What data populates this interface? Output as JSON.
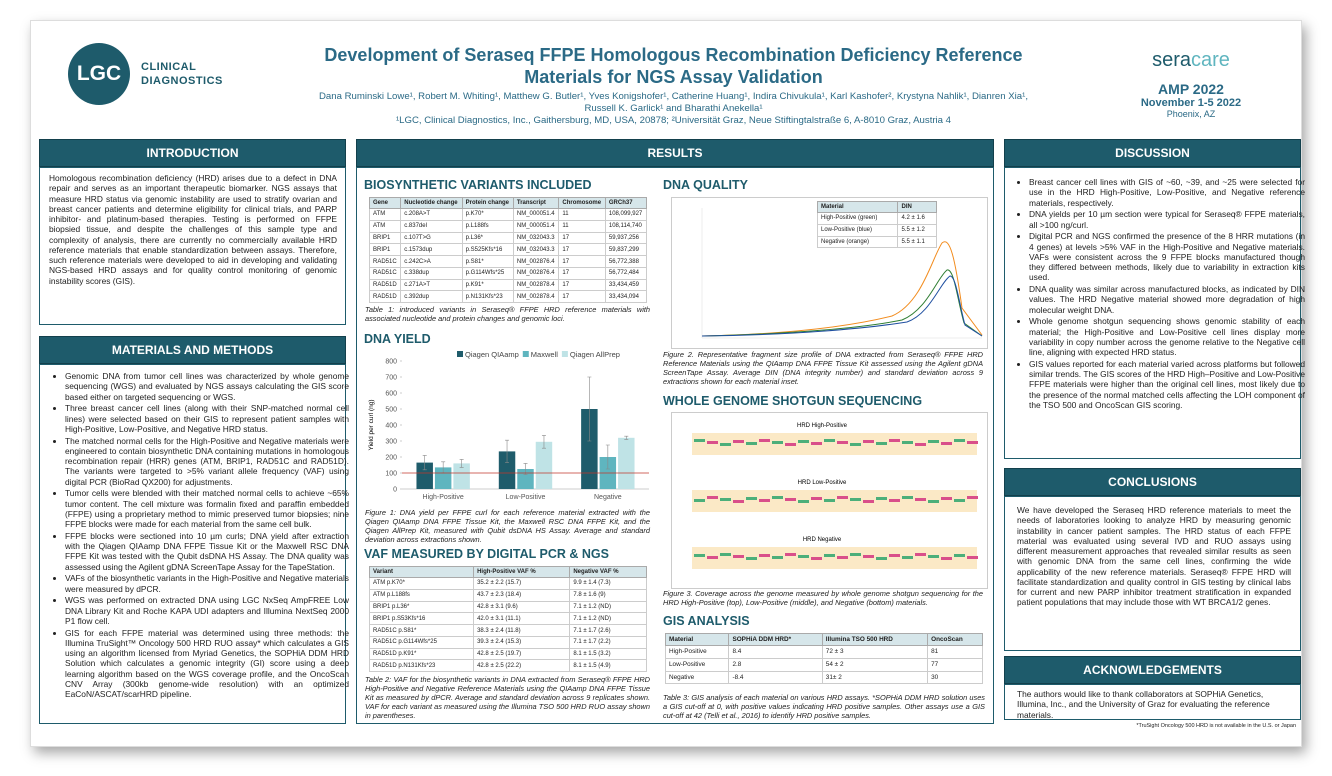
{
  "header": {
    "logo_left": "LGC",
    "logo_left_line1": "CLINICAL",
    "logo_left_line2": "DIAGNOSTICS",
    "title_line1": "Development of Seraseq FFPE Homologous Recombination Deficiency Reference",
    "title_line2": "Materials for NGS Assay Validation",
    "authors_line1": "Dana Ruminski Lowe¹, Robert M. Whiting¹, Matthew G. Butler¹, Yves Konigshofer¹, Catherine Huang¹, Indira Chivukula¹, Karl Kashofer², Krystyna Nahlik¹, Dianren Xia¹,",
    "authors_line2": "Russell K. Garlick¹ and Bharathi Anekella¹",
    "affiliations": "¹LGC, Clinical Diagnostics, Inc., Gaithersburg, MD, USA, 20878; ²Universität Graz, Neue Stiftingtalstraße 6, A-8010 Graz, Austria 4",
    "logo_right_a": "sera",
    "logo_right_b": "care",
    "event": "AMP 2022",
    "dates": "November 1-5 2022",
    "place": "Phoenix, AZ"
  },
  "introduction": {
    "heading": "INTRODUCTION",
    "text": "Homologous recombination deficiency (HRD) arises due to a defect in DNA repair and serves as an important therapeutic biomarker. NGS assays that measure HRD status via genomic instability are used to stratify ovarian and breast cancer patients and determine eligibility for clinical trials, and PARP inhibitor- and platinum-based therapies. Testing is performed on FFPE biopsied tissue, and despite the challenges of this sample type and complexity of analysis, there are currently no commercially available HRD reference materials that enable standardization between assays. Therefore, such reference materials were developed to aid in developing and validating NGS-based HRD assays and for quality control monitoring of genomic instability scores (GIS)."
  },
  "methods": {
    "heading": "MATERIALS AND METHODS",
    "items": [
      "Genomic DNA from tumor cell lines was characterized by whole genome sequencing (WGS) and evaluated by NGS assays calculating the GIS score based either on targeted sequencing or WGS.",
      "Three breast cancer cell lines (along with their SNP-matched normal cell lines) were selected based on their GIS to represent patient samples with High-Positive, Low-Positive, and Negative HRD status.",
      "The matched normal cells for the High-Positive and Negative materials were engineered to contain biosynthetic DNA containing mutations in homologous recombination repair (HRR) genes (ATM, BRIP1, RAD51C and RAD51D). The variants were targeted to >5% variant allele frequency (VAF) using digital PCR (BioRad QX200) for adjustments.",
      "Tumor cells were blended with their matched normal cells to achieve ~65% tumor content. The cell mixture was formalin fixed and paraffin embedded (FFPE) using a proprietary method to mimic preserved tumor biopsies; nine FFPE blocks were made for each material from the same cell bulk.",
      "FFPE blocks were sectioned into 10 µm curls; DNA yield after extraction with the Qiagen QIAamp DNA FFPE Tissue Kit or the Maxwell RSC DNA FFPE Kit was tested with the Qubit dsDNA HS Assay. The DNA quality was assessed using the Agilent gDNA ScreenTape Assay for the TapeStation.",
      "VAFs of the biosynthetic variants in the High-Positive and Negative materials were measured by dPCR.",
      "WGS was performed on extracted DNA using LGC NxSeq AmpFREE Low DNA Library Kit and Roche KAPA UDI adapters and Illumina NextSeq 2000 P1 flow cell.",
      "GIS for each FFPE material was determined using three methods: the Illumina TruSight™ Oncology 500 HRD RUO assay* which calculates a GIS using an algorithm licensed from Myriad Genetics, the SOPHiA DDM HRD Solution which calculates a genomic integrity (GI) score using a deep learning algorithm based on the WGS coverage profile, and the OncoScan CNV Array (300kb genome-wide resolution) with an optimized EaCoN/ASCAT/scarHRD pipeline."
    ]
  },
  "results": {
    "heading": "RESULTS",
    "biosynthetic": {
      "heading": "BIOSYNTHETIC VARIANTS INCLUDED",
      "table": {
        "header": [
          "Gene",
          "Nucleotide change",
          "Protein change",
          "Transcript",
          "Chromosome",
          "GRCh37"
        ],
        "rows": [
          [
            "ATM",
            "c.208A>T",
            "p.K70*",
            "NM_000051.4",
            "11",
            "108,099,927"
          ],
          [
            "ATM",
            "c.837del",
            "p.L188fs",
            "NM_000051.4",
            "11",
            "108,114,740"
          ],
          [
            "BRIP1",
            "c.107T>G",
            "p.L36*",
            "NM_032043.3",
            "17",
            "59,937,256"
          ],
          [
            "BRIP1",
            "c.1573dup",
            "p.S525Kfs*16",
            "NM_032043.3",
            "17",
            "59,837,299"
          ],
          [
            "RAD51C",
            "c.242C>A",
            "p.S81*",
            "NM_002876.4",
            "17",
            "56,772,388"
          ],
          [
            "RAD51C",
            "c.338dup",
            "p.G114Wfs*25",
            "NM_002876.4",
            "17",
            "56,772,484"
          ],
          [
            "RAD51D",
            "c.271A>T",
            "p.K91*",
            "NM_002878.4",
            "17",
            "33,434,459"
          ],
          [
            "RAD51D",
            "c.392dup",
            "p.N131Kfs*23",
            "NM_002878.4",
            "17",
            "33,434,094"
          ]
        ]
      },
      "caption": "Table 1: introduced variants in Seraseq® FFPE HRD reference materials with associated nucleotide and protein changes and genomic loci."
    },
    "dna_yield": {
      "heading": "DNA YIELD",
      "caption": "Figure 1: DNA yield per FFPE curl for each reference material extracted with the Qiagen QIAamp DNA FFPE Tissue Kit, the Maxwell RSC DNA FFPE Kit, and the Qiagen AllPrep Kit, measured with Qubit dsDNA HS Assay. Average and standard deviation across extractions shown.",
      "chart_data": {
        "type": "bar",
        "y_label": "Yield per curl (ng)",
        "categories": [
          "High-Positive",
          "Low-Positive",
          "Negative"
        ],
        "series": [
          {
            "name": "Qiagen QIAamp",
            "color": "#1f5c6b",
            "values": [
              165,
              235,
              500
            ],
            "errors": [
              45,
              70,
              200
            ]
          },
          {
            "name": "Maxwell",
            "color": "#5fb5bf",
            "values": [
              135,
              125,
              200
            ],
            "errors": [
              35,
              35,
              75
            ]
          },
          {
            "name": "Qiagen AllPrep",
            "color": "#bfe3e6",
            "values": [
              160,
              295,
              320
            ],
            "errors": [
              25,
              40,
              10
            ]
          }
        ],
        "hline": 100,
        "hline_color": "#c0392b",
        "ylim": [
          0,
          800
        ],
        "yticks": [
          0,
          100,
          200,
          300,
          400,
          500,
          600,
          700,
          800
        ],
        "legend": "top"
      }
    },
    "vaf": {
      "heading": "VAF MEASURED BY DIGITAL PCR & NGS",
      "table": {
        "header": [
          "Variant",
          "High-Positive VAF %",
          "Negative VAF %"
        ],
        "rows": [
          [
            "ATM p.K70*",
            "35.2 ± 2.2 (15.7)",
            "9.9 ± 1.4 (7.3)"
          ],
          [
            "ATM p.L188fs",
            "43.7 ± 2.3 (18.4)",
            "7.8 ± 1.6 (9)"
          ],
          [
            "BRIP1 p.L36*",
            "42.8 ± 3.1 (9.6)",
            "7.1 ± 1.2 (ND)"
          ],
          [
            "BRIP1 p.S53Kfs*16",
            "42.0 ± 3.1 (11.1)",
            "7.1 ± 1.2 (ND)"
          ],
          [
            "RAD51C p.S81*",
            "38.3 ± 2.4 (11.8)",
            "7.1 ± 1.7 (2.6)"
          ],
          [
            "RAD51C p.G114Wfs*25",
            "39.3 ± 2.4 (15.3)",
            "7.1 ± 1.7 (2.2)"
          ],
          [
            "RAD51D p.K91*",
            "42.8 ± 2.5 (19.7)",
            "8.1 ± 1.5 (3.2)"
          ],
          [
            "RAD51D p.N131Kfs*23",
            "42.8 ± 2.5 (22.2)",
            "8.1 ± 1.5 (4.9)"
          ]
        ]
      },
      "caption": "Table 2: VAF for the biosynthetic variants in DNA extracted from Seraseq® FFPE HRD High-Positive and Negative Reference Materials using the QIAamp DNA FFPE Tissue Kit as measured by dPCR. Average and standard deviation across 9 replicates shown. VAF for each variant as measured using the Illumina TSO 500 HRD RUO assay shown in parentheses."
    },
    "dna_quality": {
      "heading": "DNA QUALITY",
      "table": {
        "header": [
          "Material",
          "DIN"
        ],
        "rows": [
          [
            "High-Positive (green)",
            "4.2 ± 1.6"
          ],
          [
            "Low-Positive (blue)",
            "5.5 ± 1.2"
          ],
          [
            "Negative (orange)",
            "5.5 ± 1.1"
          ]
        ]
      },
      "caption": "Figure 2. Representative fragment size profile of DNA extracted from Seraseq® FFPE HRD Reference Materials using the QIAamp DNA FFPE Tissue Kit assessed using the Agilent gDNA ScreenTape Assay. Average DIN (DNA integrity number) and standard deviation across 9 extractions shown for each material inset."
    },
    "wgs": {
      "heading": "WHOLE GENOME SHOTGUN SEQUENCING",
      "panels": [
        "HRD High-Positive",
        "HRD Low-Positive",
        "HRD Negative"
      ],
      "caption": "Figure 3. Coverage across the genome measured by whole genome shotgun sequencing for the HRD High-Positive (top), Low-Positive (middle), and Negative (bottom) materials."
    },
    "gis": {
      "heading": "GIS ANALYSIS",
      "table": {
        "header": [
          "Material",
          "SOPHiA DDM HRD*",
          "Illumina TSO 500 HRD",
          "OncoScan"
        ],
        "rows": [
          [
            "High-Positive",
            "8.4",
            "72 ± 3",
            "81"
          ],
          [
            "Low-Positive",
            "2.8",
            "54 ± 2",
            "77"
          ],
          [
            "Negative",
            "-8.4",
            "31± 2",
            "30"
          ]
        ]
      },
      "caption": "Table 3: GIS analysis of each material on various HRD assays. *SOPHiA DDM HRD solution uses a GIS cut-off at 0, with positive values indicating HRD positive samples. Other assays use a GIS cut-off at 42 (Telli et al., 2016) to identify HRD positive samples."
    }
  },
  "discussion": {
    "heading": "DISCUSSION",
    "items": [
      "Breast cancer cell lines with GIS of ~60, ~39, and ~25 were selected for use in the HRD High-Positive, Low-Positive, and Negative reference materials, respectively.",
      "DNA yields per 10 µm section were typical for Seraseq® FFPE materials, all >100 ng/curl.",
      "Digital PCR and NGS confirmed the presence of the 8 HRR mutations (in 4 genes) at levels >5% VAF in the High-Positive and Negative materials. VAFs were consistent across the 9 FFPE blocks manufactured though they differed between methods, likely due to variability in extraction kits used.",
      "DNA quality was similar across manufactured blocks, as indicated by DIN values. The HRD Negative material showed more degradation of high molecular weight DNA.",
      "Whole genome shotgun sequencing shows genomic stability of each material; the High-Positive and Low-Positive cell lines display more variability in copy number across the genome relative to the Negative cell line, aligning with expected HRD status.",
      "GIS values reported for each material varied across platforms but followed similar trends. The GIS scores of the HRD High–Positive and Low-Positive FFPE materials were higher than the original cell lines, most likely due to the presence of the normal matched cells affecting the LOH component of the TSO 500 and OncoScan GIS scoring."
    ]
  },
  "conclusions": {
    "heading": "CONCLUSIONS",
    "text": "We have developed the Seraseq HRD reference materials to meet the needs of laboratories looking to analyze HRD by measuring genomic instability in cancer patient samples. The HRD status of each FFPE material was evaluated using several IVD and RUO assays using different measurement approaches that revealed similar results as seen with genomic DNA from the same cell lines, confirming the wide applicability of the new reference materials. Seraseq® FFPE HRD will facilitate standardization and quality control in GIS testing by clinical labs for current and new PARP inhibitor treatment stratification in expanded patient populations that may include those with WT BRCA1/2 genes."
  },
  "acknowledgements": {
    "heading": "ACKNOWLEDGEMENTS",
    "text": "The authors would like to thank collaborators at SOPHiA Genetics, Illumina, Inc., and the University of Graz for evaluating the reference materials.",
    "footnote": "*TruSight Oncology 500 HRD is not available in the U.S. or Japan"
  }
}
